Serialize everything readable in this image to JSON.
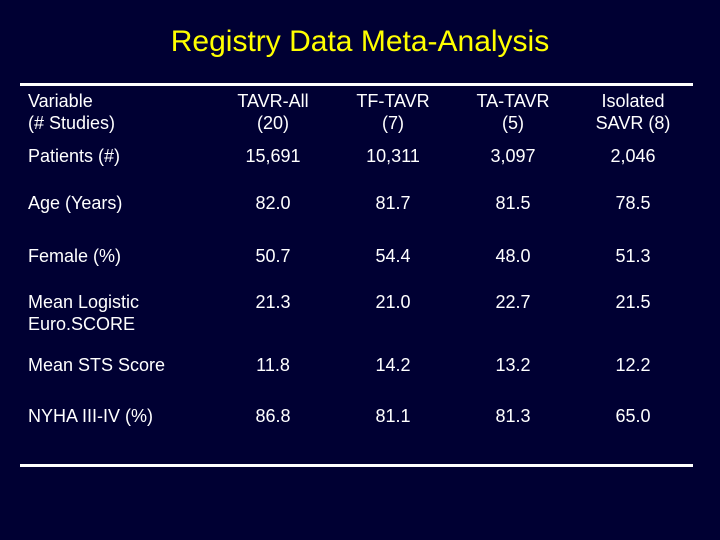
{
  "title": "Registry Data Meta-Analysis",
  "table": {
    "headers": [
      {
        "line1": "Variable",
        "line2": "(# Studies)"
      },
      {
        "line1": "TAVR-All",
        "line2": "(20)"
      },
      {
        "line1": "TF-TAVR",
        "line2": "(7)"
      },
      {
        "line1": "TA-TAVR",
        "line2": "(5)"
      },
      {
        "line1": "Isolated",
        "line2": "SAVR (8)"
      }
    ],
    "rows": [
      {
        "label_line1": "Patients (#)",
        "label_line2": "",
        "values": [
          "15,691",
          "10,311",
          "3,097",
          "2,046"
        ]
      },
      {
        "label_line1": "Age (Years)",
        "label_line2": "",
        "values": [
          "82.0",
          "81.7",
          "81.5",
          "78.5"
        ]
      },
      {
        "label_line1": "Female (%)",
        "label_line2": "",
        "values": [
          "50.7",
          "54.4",
          "48.0",
          "51.3"
        ]
      },
      {
        "label_line1": "Mean Logistic",
        "label_line2": "Euro.SCORE",
        "values": [
          "21.3",
          "21.0",
          "22.7",
          "21.5"
        ]
      },
      {
        "label_line1": "Mean STS Score",
        "label_line2": "",
        "values": [
          "11.8",
          "14.2",
          "13.2",
          "12.2"
        ]
      },
      {
        "label_line1": "NYHA III-IV (%)",
        "label_line2": "",
        "values": [
          "86.8",
          "81.1",
          "81.3",
          "65.0"
        ]
      }
    ]
  },
  "colors": {
    "background": "#000033",
    "title": "#ffff00",
    "text": "#ffffff"
  }
}
